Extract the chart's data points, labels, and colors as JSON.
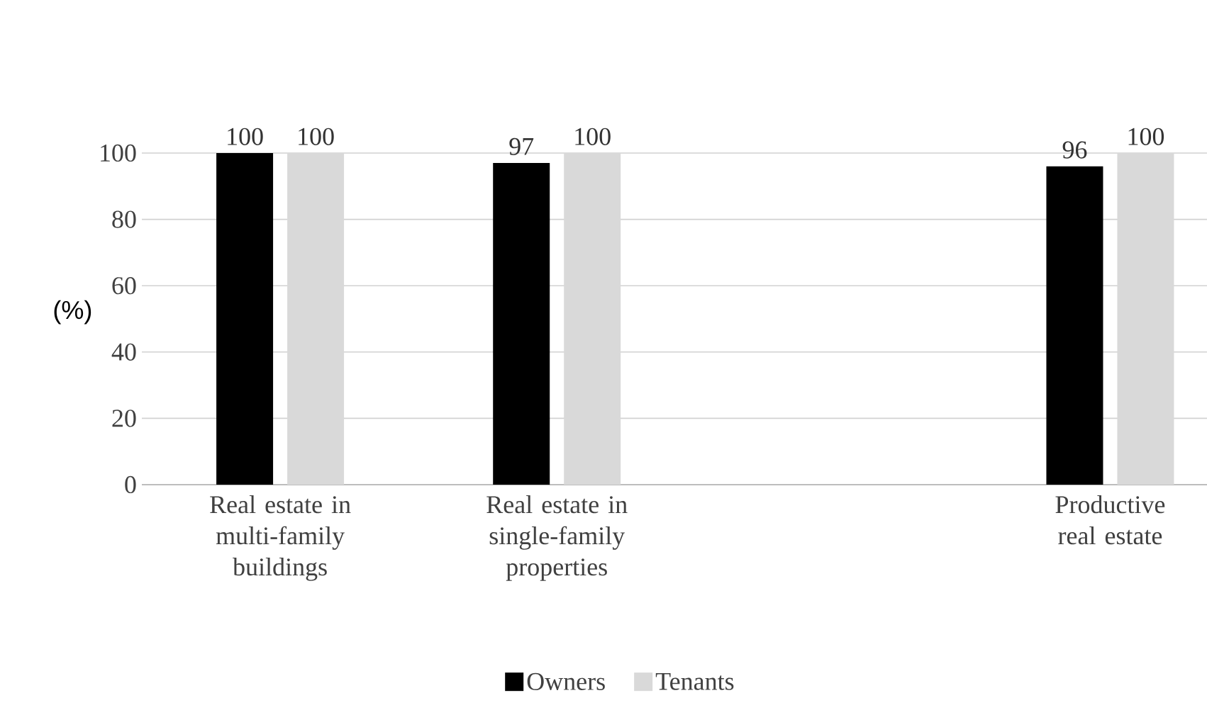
{
  "chart_data": {
    "type": "bar",
    "ylabel": "(%)",
    "categories": [
      "Real estate in multi-family buildings",
      "Real estate in single-family properties",
      null,
      "Productive real estate"
    ],
    "series": [
      {
        "name": "Owners",
        "color": "#000000",
        "values": [
          100,
          97,
          null,
          96
        ]
      },
      {
        "name": "Tenants",
        "color": "#d9d9d9",
        "values": [
          100,
          100,
          null,
          100
        ]
      }
    ],
    "ylim": [
      0,
      100
    ],
    "yticks": [
      0,
      20,
      40,
      60,
      80,
      100
    ],
    "grid": "y",
    "legend": "bottom",
    "data_labels": true
  }
}
